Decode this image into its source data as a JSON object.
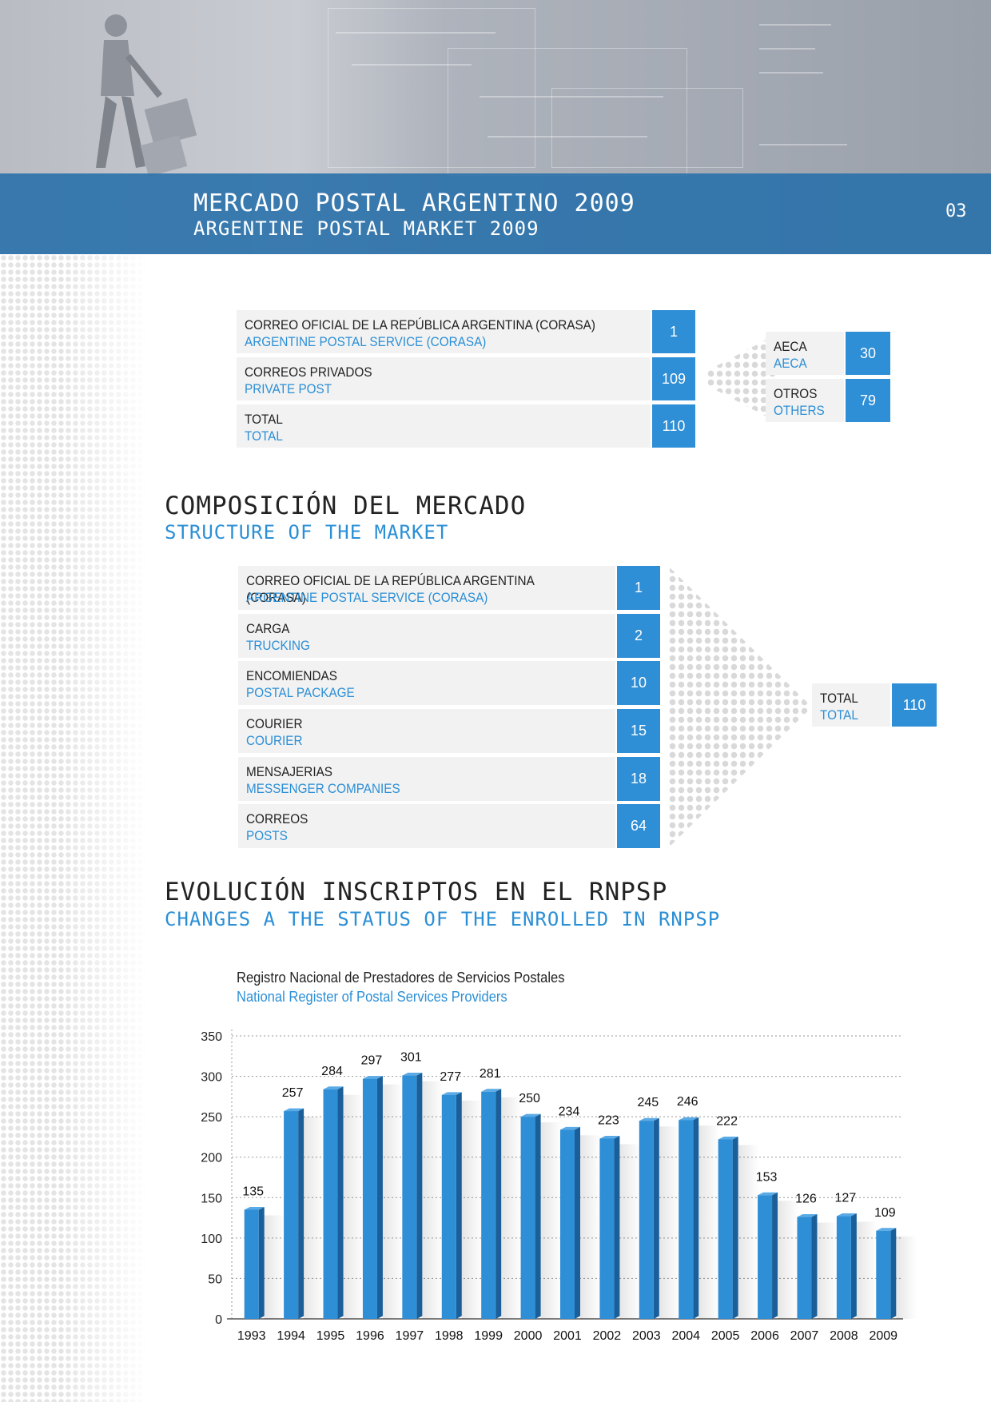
{
  "header": {
    "title_es": "MERCADO POSTAL ARGENTINO 2009",
    "title_en": "ARGENTINE POSTAL MARKET 2009",
    "page_number": "03"
  },
  "summary": {
    "rows": [
      {
        "es": "CORREO OFICIAL DE LA REPÚBLICA ARGENTINA (CORASA)",
        "en": "ARGENTINE POSTAL SERVICE (CORASA)",
        "value": "1"
      },
      {
        "es": "CORREOS PRIVADOS",
        "en": "PRIVATE POST",
        "value": "109"
      },
      {
        "es": "TOTAL",
        "en": "TOTAL",
        "value": "110"
      }
    ],
    "breakdown": [
      {
        "es": "AECA",
        "en": "AECA",
        "value": "30"
      },
      {
        "es": "OTROS",
        "en": "OTHERS",
        "value": "79"
      }
    ]
  },
  "composition": {
    "title_es": "COMPOSICIÓN DEL MERCADO",
    "title_en": "STRUCTURE OF THE MARKET",
    "rows": [
      {
        "es": "CORREO OFICIAL DE LA REPÚBLICA ARGENTINA (CORASA)",
        "en": "ARGENTINE POSTAL SERVICE (CORASA)",
        "value": "1"
      },
      {
        "es": "CARGA",
        "en": "TRUCKING",
        "value": "2"
      },
      {
        "es": "ENCOMIENDAS",
        "en": "POSTAL PACKAGE",
        "value": "10"
      },
      {
        "es": "COURIER",
        "en": "COURIER",
        "value": "15"
      },
      {
        "es": "MENSAJERIAS",
        "en": "MESSENGER COMPANIES",
        "value": "18"
      },
      {
        "es": "CORREOS",
        "en": "POSTS",
        "value": "64"
      }
    ],
    "total": {
      "es": "TOTAL",
      "en": "TOTAL",
      "value": "110"
    }
  },
  "evolution": {
    "title_es": "EVOLUCIÓN INSCRIPTOS EN EL RNPSP",
    "title_en": "CHANGES A THE STATUS OF THE ENROLLED IN RNPSP"
  },
  "chart_data": {
    "type": "bar",
    "title": "Registro Nacional de Prestadores de Servicios Postales",
    "subtitle": "National Register of Postal Services Providers",
    "categories": [
      "1993",
      "1994",
      "1995",
      "1996",
      "1997",
      "1998",
      "1999",
      "2000",
      "2001",
      "2002",
      "2003",
      "2004",
      "2005",
      "2006",
      "2007",
      "2008",
      "2009"
    ],
    "values": [
      135,
      257,
      284,
      297,
      301,
      277,
      281,
      250,
      234,
      223,
      245,
      246,
      222,
      153,
      126,
      127,
      109
    ],
    "yticks": [
      0,
      50,
      100,
      150,
      200,
      250,
      300,
      350
    ],
    "ylim": [
      0,
      350
    ],
    "xlabel": "",
    "ylabel": "",
    "grid": true,
    "colors": {
      "bar": "#2e8ed6",
      "bar_side": "#1a5f99",
      "bar_top": "#5aaae6"
    }
  }
}
